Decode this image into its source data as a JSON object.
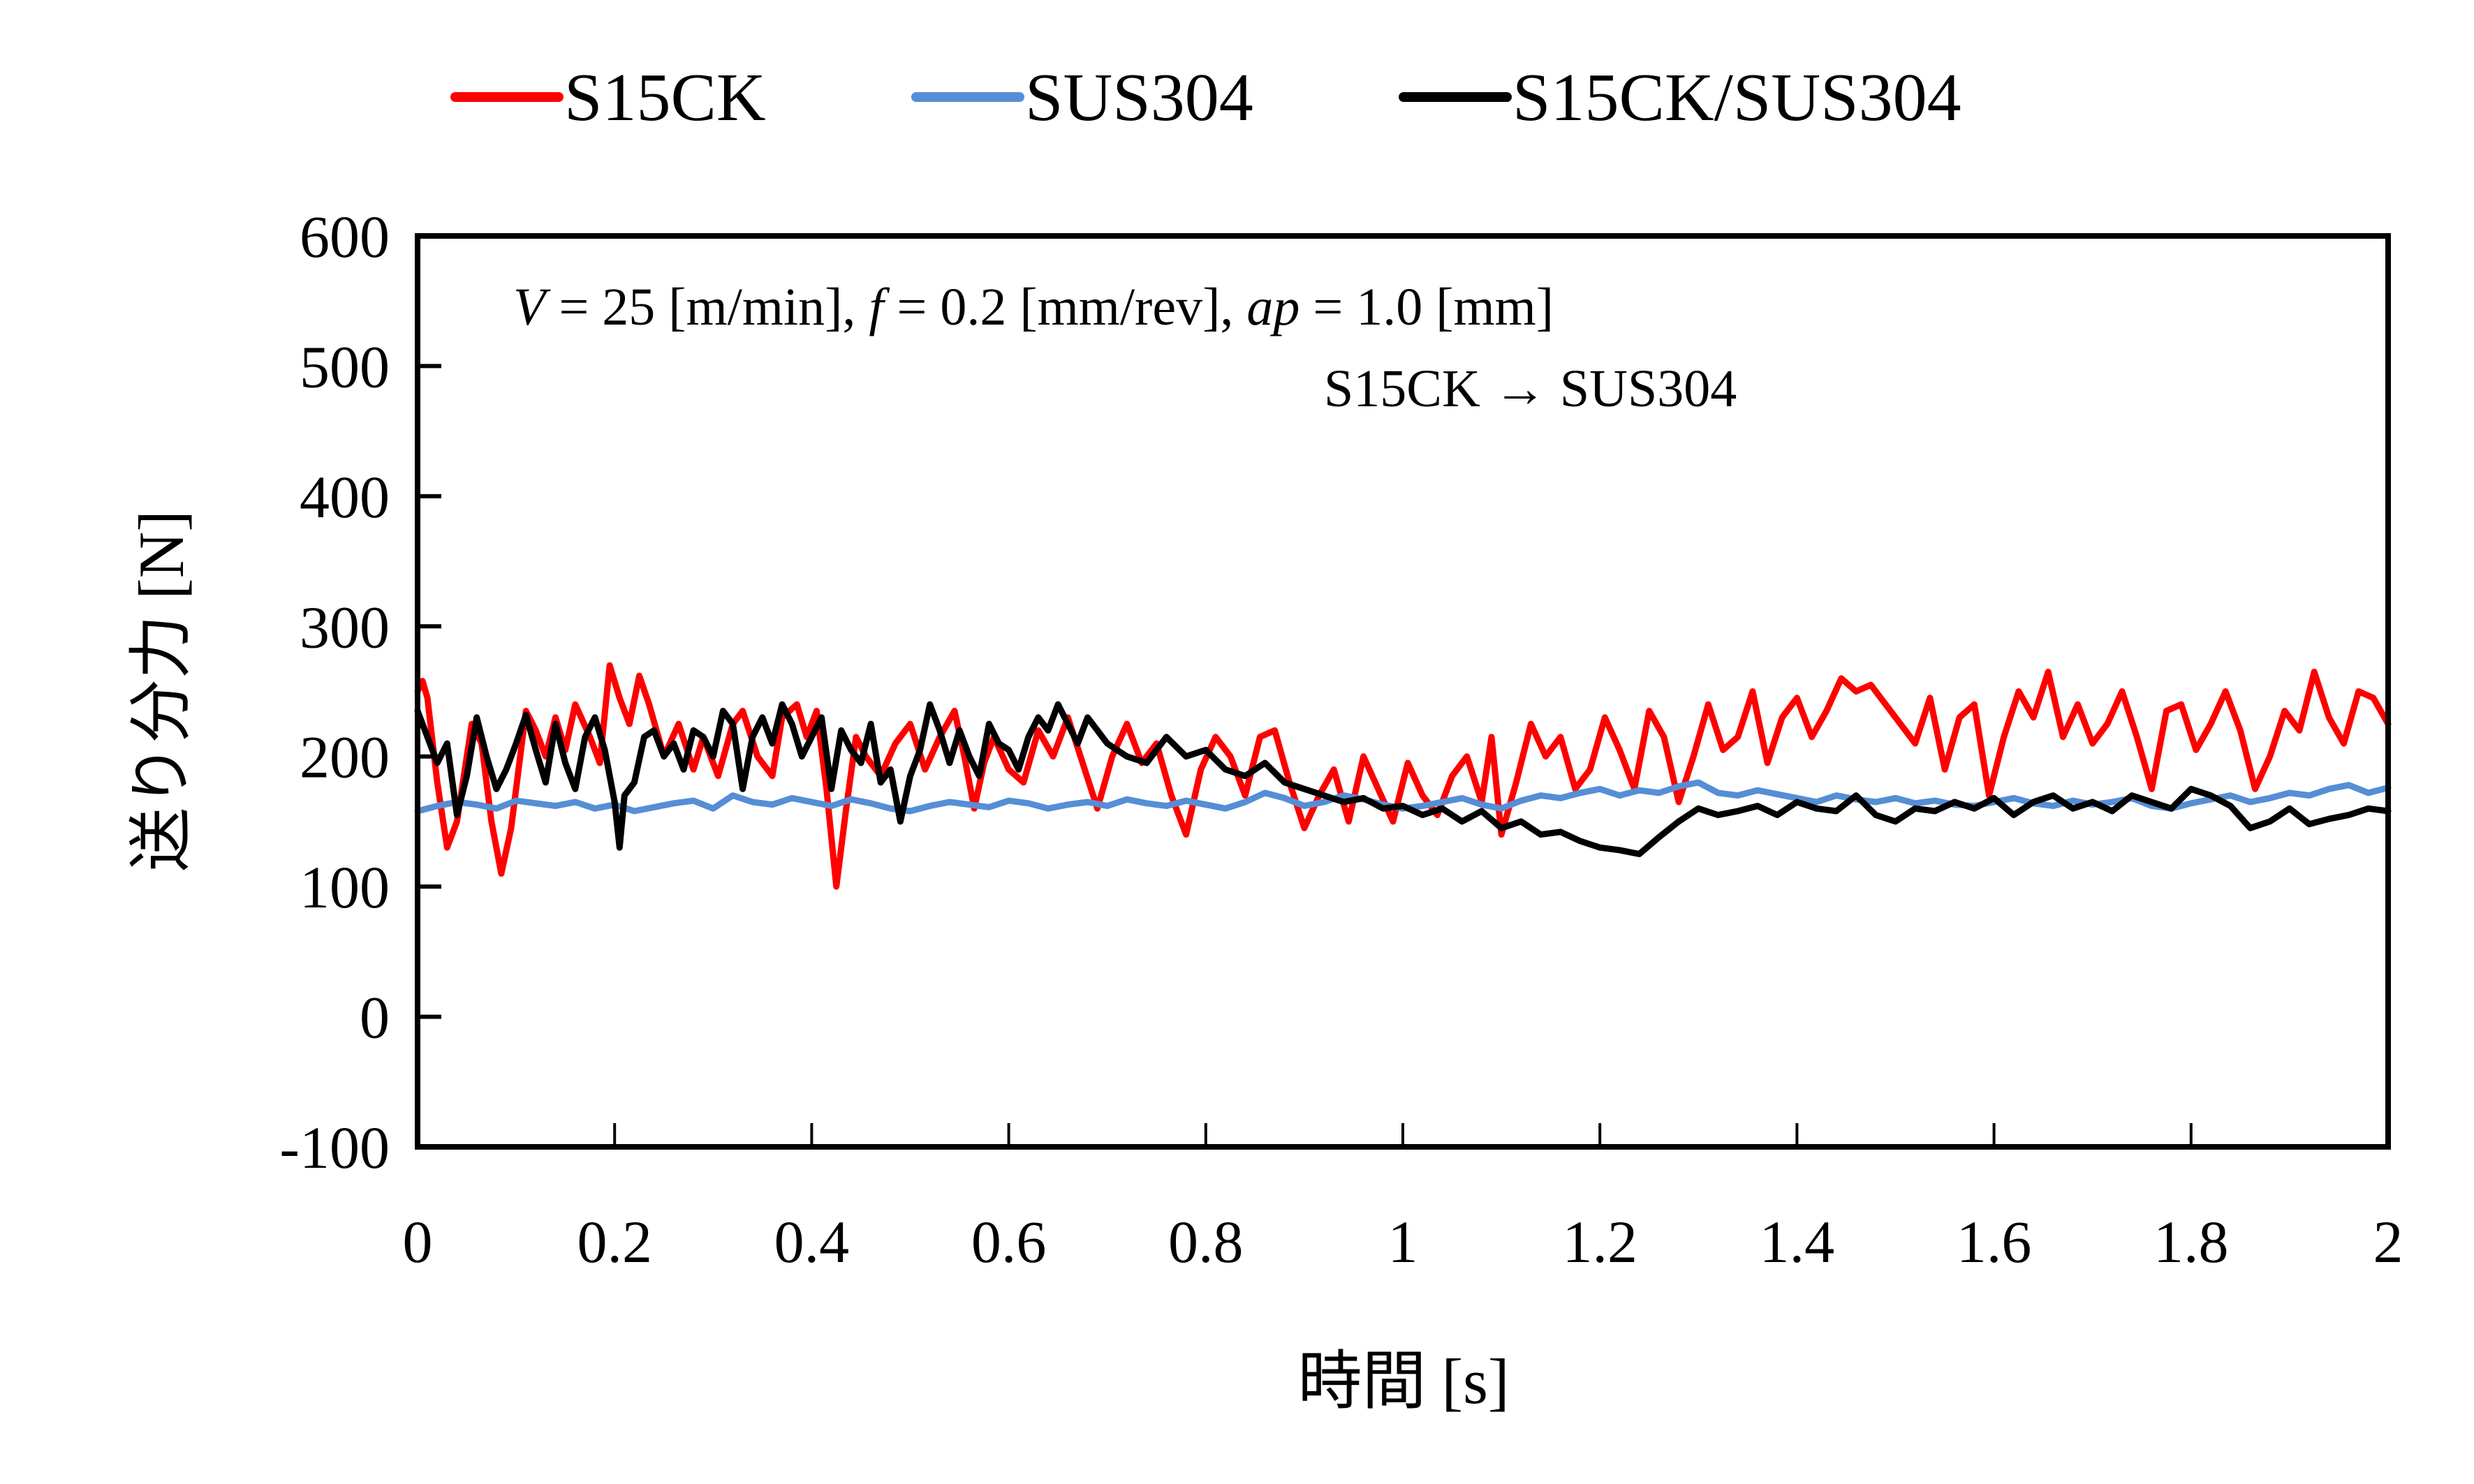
{
  "chart_data": {
    "type": "line",
    "title": "",
    "xlabel": "時間 [s]",
    "xlabel_main": "時間",
    "xlabel_unit": "[s]",
    "ylabel": "送り分力 [N]",
    "ylabel_main": "送り分力",
    "ylabel_unit": "[N]",
    "xlim": [
      0,
      2
    ],
    "ylim": [
      -100,
      600
    ],
    "x_ticks": [
      0,
      0.2,
      0.4,
      0.6,
      0.8,
      1,
      1.2,
      1.4,
      1.6,
      1.8,
      2
    ],
    "x_tick_labels": [
      "0",
      "0.2",
      "0.4",
      "0.6",
      "0.8",
      "1",
      "1.2",
      "1.4",
      "1.6",
      "1.8",
      "2"
    ],
    "y_ticks": [
      -100,
      0,
      100,
      200,
      300,
      400,
      500,
      600
    ],
    "y_tick_labels": [
      "-100",
      "0",
      "100",
      "200",
      "300",
      "400",
      "500",
      "600"
    ],
    "grid": false,
    "legend_position": "top-center",
    "annotations": {
      "conditions": {
        "V_symbol": "V",
        "V_value": " = 25 [m/min], ",
        "f_symbol": "f",
        "f_value": " = 0.2 [mm/rev], ",
        "ap_symbol": "ap",
        "ap_value": " = 1.0 [mm]"
      },
      "transition": "S15CK → SUS304"
    },
    "series": [
      {
        "name": "S15CK",
        "color": "#ff0000",
        "x": [
          0,
          0.005,
          0.01,
          0.02,
          0.03,
          0.04,
          0.055,
          0.065,
          0.075,
          0.085,
          0.095,
          0.11,
          0.12,
          0.13,
          0.14,
          0.15,
          0.16,
          0.175,
          0.185,
          0.195,
          0.205,
          0.215,
          0.225,
          0.235,
          0.25,
          0.265,
          0.28,
          0.29,
          0.305,
          0.32,
          0.33,
          0.345,
          0.36,
          0.37,
          0.385,
          0.395,
          0.405,
          0.415,
          0.425,
          0.435,
          0.445,
          0.455,
          0.47,
          0.485,
          0.5,
          0.515,
          0.53,
          0.545,
          0.555,
          0.565,
          0.575,
          0.585,
          0.6,
          0.615,
          0.63,
          0.645,
          0.66,
          0.675,
          0.69,
          0.705,
          0.72,
          0.735,
          0.75,
          0.765,
          0.78,
          0.795,
          0.81,
          0.825,
          0.84,
          0.855,
          0.87,
          0.885,
          0.9,
          0.915,
          0.93,
          0.945,
          0.96,
          0.975,
          0.99,
          1.005,
          1.02,
          1.035,
          1.05,
          1.065,
          1.08,
          1.09,
          1.1,
          1.115,
          1.13,
          1.145,
          1.16,
          1.175,
          1.19,
          1.205,
          1.22,
          1.235,
          1.25,
          1.265,
          1.28,
          1.295,
          1.31,
          1.325,
          1.34,
          1.355,
          1.37,
          1.385,
          1.4,
          1.415,
          1.43,
          1.445,
          1.46,
          1.475,
          1.49,
          1.505,
          1.52,
          1.535,
          1.55,
          1.565,
          1.58,
          1.595,
          1.61,
          1.625,
          1.64,
          1.655,
          1.67,
          1.685,
          1.7,
          1.715,
          1.73,
          1.745,
          1.76,
          1.775,
          1.79,
          1.805,
          1.82,
          1.835,
          1.85,
          1.865,
          1.88,
          1.895,
          1.91,
          1.925,
          1.94,
          1.955,
          1.97,
          1.985,
          2.0
        ],
        "y": [
          250,
          258,
          245,
          180,
          130,
          150,
          225,
          210,
          150,
          110,
          145,
          235,
          220,
          200,
          230,
          205,
          240,
          215,
          195,
          270,
          245,
          225,
          262,
          240,
          200,
          225,
          190,
          215,
          185,
          225,
          235,
          200,
          185,
          230,
          240,
          215,
          235,
          175,
          100,
          160,
          215,
          200,
          185,
          210,
          225,
          190,
          215,
          235,
          200,
          160,
          195,
          215,
          190,
          180,
          220,
          200,
          230,
          195,
          160,
          200,
          225,
          195,
          210,
          170,
          140,
          190,
          215,
          200,
          170,
          215,
          220,
          180,
          145,
          170,
          190,
          150,
          200,
          175,
          150,
          195,
          170,
          155,
          185,
          200,
          165,
          215,
          140,
          180,
          225,
          200,
          215,
          175,
          190,
          230,
          205,
          175,
          235,
          215,
          165,
          200,
          240,
          205,
          215,
          250,
          195,
          230,
          245,
          215,
          235,
          260,
          250,
          255,
          240,
          225,
          210,
          245,
          190,
          230,
          240,
          170,
          215,
          250,
          230,
          265,
          215,
          240,
          210,
          225,
          250,
          215,
          175,
          235,
          240,
          205,
          225,
          250,
          220,
          175,
          200,
          235,
          220,
          265,
          230,
          210,
          250,
          245,
          225
        ]
      },
      {
        "name": "SUS304",
        "color": "#558ed5",
        "x": [
          0,
          0.02,
          0.04,
          0.06,
          0.08,
          0.1,
          0.12,
          0.14,
          0.16,
          0.18,
          0.2,
          0.22,
          0.24,
          0.26,
          0.28,
          0.3,
          0.32,
          0.34,
          0.36,
          0.38,
          0.4,
          0.42,
          0.44,
          0.46,
          0.48,
          0.5,
          0.52,
          0.54,
          0.56,
          0.58,
          0.6,
          0.62,
          0.64,
          0.66,
          0.68,
          0.7,
          0.72,
          0.74,
          0.76,
          0.78,
          0.8,
          0.82,
          0.84,
          0.86,
          0.88,
          0.9,
          0.92,
          0.94,
          0.96,
          0.98,
          1.0,
          1.02,
          1.04,
          1.06,
          1.08,
          1.1,
          1.12,
          1.14,
          1.16,
          1.18,
          1.2,
          1.22,
          1.24,
          1.26,
          1.28,
          1.3,
          1.32,
          1.34,
          1.36,
          1.38,
          1.4,
          1.42,
          1.44,
          1.46,
          1.48,
          1.5,
          1.52,
          1.54,
          1.56,
          1.58,
          1.6,
          1.62,
          1.64,
          1.66,
          1.68,
          1.7,
          1.72,
          1.74,
          1.76,
          1.78,
          1.8,
          1.82,
          1.84,
          1.86,
          1.88,
          1.9,
          1.92,
          1.94,
          1.96,
          1.98,
          2.0
        ],
        "y": [
          158,
          162,
          165,
          163,
          160,
          166,
          164,
          162,
          165,
          160,
          163,
          158,
          161,
          164,
          166,
          160,
          170,
          165,
          163,
          168,
          165,
          162,
          167,
          164,
          160,
          158,
          162,
          165,
          163,
          161,
          166,
          164,
          160,
          163,
          165,
          162,
          167,
          164,
          162,
          166,
          163,
          160,
          165,
          172,
          168,
          162,
          165,
          170,
          167,
          163,
          160,
          162,
          165,
          168,
          163,
          160,
          166,
          170,
          168,
          172,
          175,
          170,
          174,
          172,
          177,
          180,
          172,
          170,
          174,
          171,
          168,
          165,
          170,
          167,
          165,
          168,
          164,
          166,
          163,
          162,
          165,
          168,
          164,
          162,
          166,
          163,
          165,
          168,
          162,
          160,
          164,
          167,
          170,
          165,
          168,
          172,
          170,
          175,
          178,
          172,
          176
        ]
      },
      {
        "name": "S15CK/SUS304",
        "color": "#000000",
        "x": [
          0,
          0.01,
          0.02,
          0.03,
          0.04,
          0.05,
          0.06,
          0.07,
          0.08,
          0.09,
          0.1,
          0.11,
          0.12,
          0.13,
          0.14,
          0.15,
          0.16,
          0.17,
          0.18,
          0.19,
          0.2,
          0.205,
          0.21,
          0.22,
          0.23,
          0.24,
          0.25,
          0.26,
          0.27,
          0.28,
          0.29,
          0.3,
          0.31,
          0.32,
          0.33,
          0.34,
          0.35,
          0.36,
          0.37,
          0.38,
          0.39,
          0.4,
          0.41,
          0.42,
          0.43,
          0.44,
          0.45,
          0.46,
          0.47,
          0.48,
          0.49,
          0.5,
          0.51,
          0.52,
          0.53,
          0.54,
          0.55,
          0.56,
          0.57,
          0.58,
          0.59,
          0.6,
          0.61,
          0.62,
          0.63,
          0.64,
          0.65,
          0.66,
          0.67,
          0.68,
          0.69,
          0.7,
          0.72,
          0.74,
          0.76,
          0.78,
          0.8,
          0.82,
          0.84,
          0.86,
          0.88,
          0.9,
          0.92,
          0.94,
          0.96,
          0.98,
          1.0,
          1.02,
          1.04,
          1.06,
          1.08,
          1.1,
          1.12,
          1.14,
          1.16,
          1.18,
          1.2,
          1.22,
          1.24,
          1.26,
          1.28,
          1.3,
          1.32,
          1.34,
          1.36,
          1.38,
          1.4,
          1.42,
          1.44,
          1.46,
          1.48,
          1.5,
          1.52,
          1.54,
          1.56,
          1.58,
          1.6,
          1.62,
          1.64,
          1.66,
          1.68,
          1.7,
          1.72,
          1.74,
          1.76,
          1.78,
          1.8,
          1.82,
          1.84,
          1.86,
          1.88,
          1.9,
          1.92,
          1.94,
          1.96,
          1.98,
          2.0
        ],
        "y": [
          235,
          215,
          195,
          210,
          155,
          185,
          230,
          200,
          175,
          190,
          210,
          232,
          205,
          180,
          225,
          195,
          175,
          215,
          230,
          205,
          165,
          130,
          170,
          180,
          215,
          220,
          200,
          210,
          190,
          220,
          215,
          200,
          235,
          225,
          175,
          215,
          230,
          210,
          240,
          225,
          200,
          215,
          230,
          175,
          220,
          205,
          195,
          225,
          180,
          190,
          150,
          185,
          205,
          240,
          220,
          195,
          220,
          200,
          185,
          225,
          210,
          205,
          190,
          215,
          230,
          220,
          240,
          225,
          210,
          230,
          220,
          210,
          200,
          195,
          215,
          200,
          205,
          190,
          185,
          195,
          180,
          175,
          170,
          165,
          168,
          160,
          162,
          155,
          160,
          150,
          158,
          145,
          150,
          140,
          142,
          135,
          130,
          128,
          125,
          138,
          150,
          160,
          155,
          158,
          162,
          155,
          165,
          160,
          158,
          170,
          155,
          150,
          160,
          158,
          165,
          160,
          168,
          155,
          165,
          170,
          160,
          165,
          158,
          170,
          165,
          160,
          175,
          170,
          162,
          145,
          150,
          160,
          148,
          152,
          155,
          160,
          158
        ]
      }
    ]
  }
}
